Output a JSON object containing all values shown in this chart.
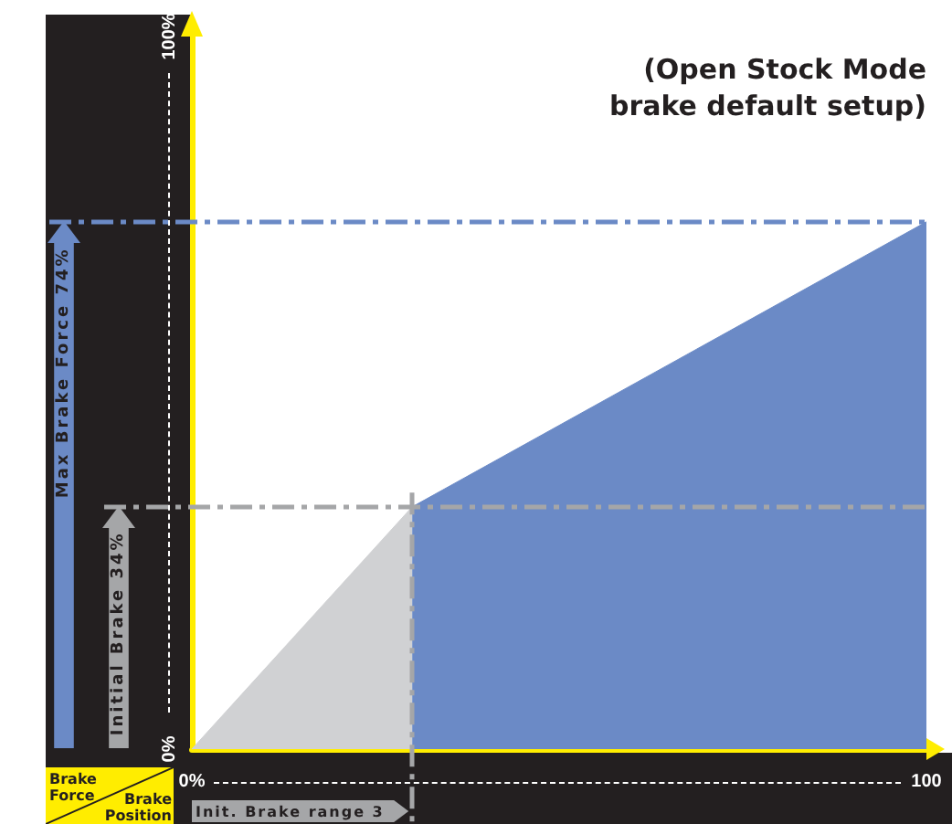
{
  "chart_data": {
    "type": "area",
    "title": "(Open Stock Mode brake default setup)",
    "xlabel": "Brake Position",
    "ylabel": "Brake Force",
    "series": [
      {
        "x": [
          0,
          30
        ],
        "values": [
          0,
          34
        ],
        "color": "#d0d1d3"
      },
      {
        "x": [
          30,
          100
        ],
        "values": [
          34,
          74
        ],
        "color": "#6b8ac6"
      }
    ],
    "xlim": [
      0,
      100
    ],
    "ylim": [
      0,
      100
    ],
    "xticks": [
      {
        "value": 0,
        "label": "0%"
      },
      {
        "value": 100,
        "label": "100"
      }
    ],
    "yticks": [
      {
        "value": 0,
        "label": "0%"
      },
      {
        "value": 100,
        "label": "100%"
      }
    ],
    "ref_lines": [
      {
        "axis": "y",
        "value": 74,
        "label": "Max Brake Force 74%",
        "color": "#6b8ac6",
        "line_style": "dashed"
      },
      {
        "axis": "y",
        "value": 34,
        "label": "Initial Brake 34%",
        "color": "#a5a6a8",
        "line_style": "dashed"
      },
      {
        "axis": "x",
        "value": 30,
        "label": "Init. Brake range 3",
        "color": "#a5a6a8",
        "line_style": "dashed"
      }
    ],
    "marker": "none"
  }
}
